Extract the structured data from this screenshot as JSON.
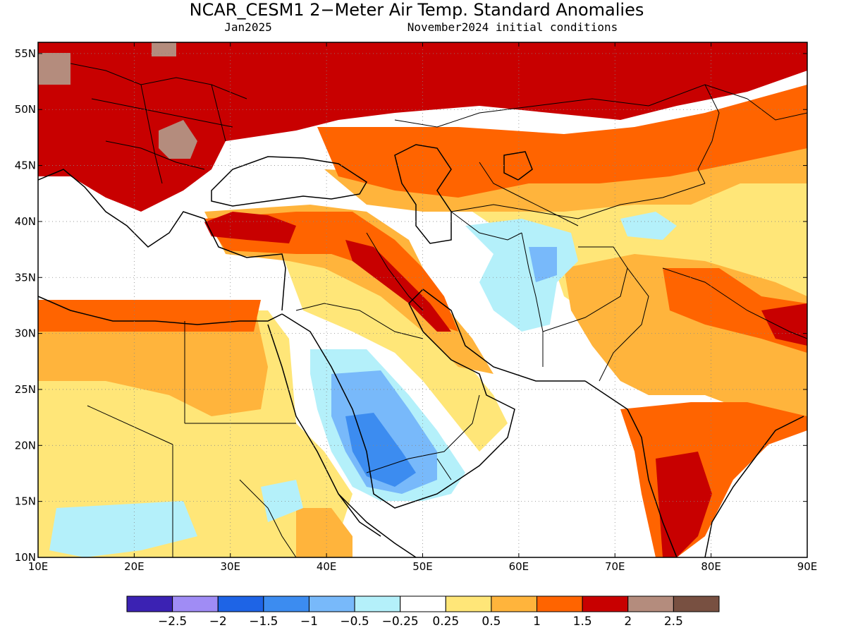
{
  "header": {
    "title": "NCAR_CESM1 2−Meter Air Temp. Standard Anomalies",
    "valid_month": "Jan2025",
    "init_conditions": "November2024 initial conditions"
  },
  "map": {
    "lon_range": [
      10,
      90
    ],
    "lat_range": [
      10,
      56
    ],
    "lat_ticks": [
      {
        "value": 55,
        "label": "55N"
      },
      {
        "value": 50,
        "label": "50N"
      },
      {
        "value": 45,
        "label": "45N"
      },
      {
        "value": 40,
        "label": "40N"
      },
      {
        "value": 35,
        "label": "35N"
      },
      {
        "value": 30,
        "label": "30N"
      },
      {
        "value": 25,
        "label": "25N"
      },
      {
        "value": 20,
        "label": "20N"
      },
      {
        "value": 15,
        "label": "15N"
      },
      {
        "value": 10,
        "label": "10N"
      }
    ],
    "lon_ticks": [
      {
        "value": 10,
        "label": "10E"
      },
      {
        "value": 20,
        "label": "20E"
      },
      {
        "value": 30,
        "label": "30E"
      },
      {
        "value": 40,
        "label": "40E"
      },
      {
        "value": 50,
        "label": "50E"
      },
      {
        "value": 60,
        "label": "60E"
      },
      {
        "value": 70,
        "label": "70E"
      },
      {
        "value": 80,
        "label": "80E"
      },
      {
        "value": 90,
        "label": "90E"
      }
    ],
    "gridlines": "dotted"
  },
  "colorbar": {
    "colors": [
      "#3b22b3",
      "#a08cf5",
      "#1e64e6",
      "#3c8cf0",
      "#78b9fa",
      "#b4f0fa",
      "#ffffff",
      "#ffe678",
      "#ffb43c",
      "#ff6400",
      "#c80000",
      "#b48c7d",
      "#785041"
    ],
    "labels": [
      "−2.5",
      "−2",
      "−1.5",
      "−1",
      "−0.5",
      "−0.25",
      "0.25",
      "0.5",
      "1",
      "1.5",
      "2",
      "2.5"
    ]
  }
}
